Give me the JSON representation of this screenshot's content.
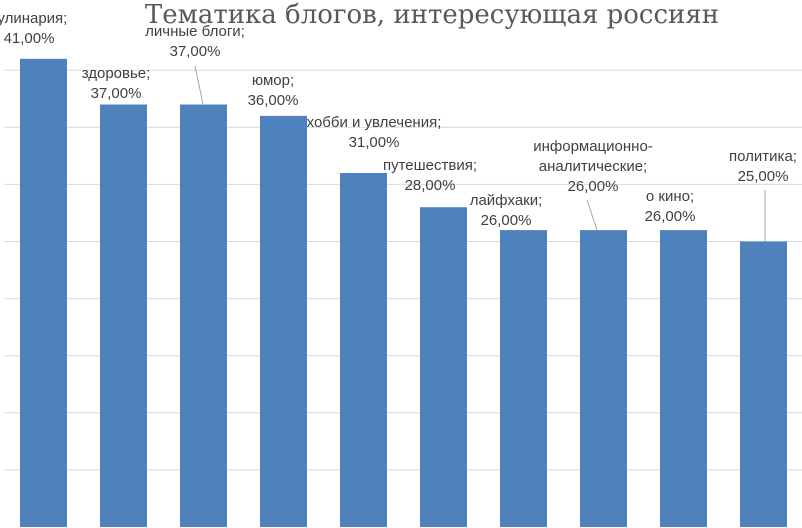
{
  "chart_data": {
    "type": "bar",
    "title": "Тематика блогов, интересующая россиян",
    "categories": [
      "кулинария",
      "здоровье",
      "личные блоги",
      "юмор",
      "хобби и увлечения",
      "путешествия",
      "лайфхаки",
      "информационно-аналитические",
      "о кино",
      "политика"
    ],
    "values": [
      41,
      37,
      37,
      36,
      31,
      28,
      26,
      26,
      26,
      25
    ],
    "value_labels": [
      "41,00%",
      "37,00%",
      "37,00%",
      "36,00%",
      "31,00%",
      "28,00%",
      "26,00%",
      "26,00%",
      "26,00%",
      "25,00%"
    ],
    "category_labels": [
      [
        "кулинария;"
      ],
      [
        "здоровье;"
      ],
      [
        "личные блоги;"
      ],
      [
        "юмор;"
      ],
      [
        "хобби и увлечения;"
      ],
      [
        "путешествия;"
      ],
      [
        "лайфхаки;"
      ],
      [
        "информационно-",
        "аналитические;"
      ],
      [
        "о кино;"
      ],
      [
        "политика;"
      ]
    ],
    "ylim": [
      0,
      45
    ],
    "grid": true,
    "legend": "none",
    "colors": {
      "bar": "#4f81bd",
      "grid": "#d9d9d9",
      "text": "#404040",
      "title": "#595959"
    }
  }
}
